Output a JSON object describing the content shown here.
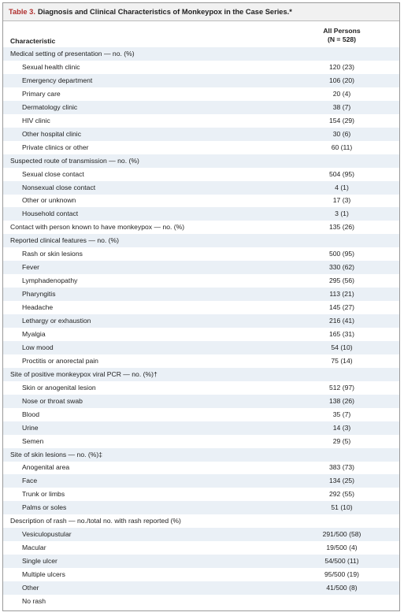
{
  "title": {
    "label": "Table 3.",
    "text": "Diagnosis and Clinical Characteristics of Monkeypox in the Case Series.*"
  },
  "table": {
    "header": {
      "characteristic": "Characteristic",
      "all_persons": [
        "All Persons",
        "(N = 528)"
      ]
    },
    "sections": [
      {
        "heading": "Medical setting of presentation — no. (%)",
        "items": [
          [
            "Sexual health clinic",
            "120 (23)"
          ],
          [
            "Emergency department",
            "106 (20)"
          ],
          [
            "Primary care",
            "20 (4)"
          ],
          [
            "Dermatology clinic",
            "38 (7)"
          ],
          [
            "HIV clinic",
            "154 (29)"
          ],
          [
            "Other hospital clinic",
            "30 (6)"
          ],
          [
            "Private clinics or other",
            "60 (11)"
          ]
        ]
      },
      {
        "heading": "Suspected route of transmission — no. (%)",
        "items": [
          [
            "Sexual close contact",
            "504 (95)"
          ],
          [
            "Nonsexual close contact",
            "4 (1)"
          ],
          [
            "Other or unknown",
            "17 (3)"
          ],
          [
            "Household contact",
            "3 (1)"
          ]
        ]
      },
      {
        "heading": "Contact with person known to have monkeypox — no. (%)",
        "value": "135 (26)"
      },
      {
        "heading": "Reported clinical features — no. (%)",
        "items": [
          [
            "Rash or skin lesions",
            "500 (95)"
          ],
          [
            "Fever",
            "330 (62)"
          ],
          [
            "Lymphadenopathy",
            "295 (56)"
          ],
          [
            "Pharyngitis",
            "113 (21)"
          ],
          [
            "Headache",
            "145 (27)"
          ],
          [
            "Lethargy or exhaustion",
            "216 (41)"
          ],
          [
            "Myalgia",
            "165 (31)"
          ],
          [
            "Low mood",
            "54 (10)"
          ],
          [
            "Proctitis or anorectal pain",
            "75 (14)"
          ]
        ]
      },
      {
        "heading": "Site of positive monkeypox viral PCR — no. (%)†",
        "items": [
          [
            "Skin or anogenital lesion",
            "512 (97)"
          ],
          [
            "Nose or throat swab",
            "138 (26)"
          ],
          [
            "Blood",
            "35 (7)"
          ],
          [
            "Urine",
            "14 (3)"
          ],
          [
            "Semen",
            "29 (5)"
          ]
        ]
      },
      {
        "heading": "Site of skin lesions — no. (%)‡",
        "items": [
          [
            "Anogenital area",
            "383 (73)"
          ],
          [
            "Face",
            "134 (25)"
          ],
          [
            "Trunk or limbs",
            "292 (55)"
          ],
          [
            "Palms or soles",
            "51 (10)"
          ]
        ]
      },
      {
        "heading": "Description of rash — no./total no. with rash reported (%)",
        "items": [
          [
            "Vesiculopustular",
            "291/500 (58)"
          ],
          [
            "Macular",
            "19/500 (4)"
          ],
          [
            "Single ulcer",
            "54/500 (11)"
          ],
          [
            "Multiple ulcers",
            "95/500 (19)"
          ],
          [
            "Other",
            "41/500 (8)"
          ],
          [
            "No rash"
          ]
        ]
      }
    ]
  }
}
